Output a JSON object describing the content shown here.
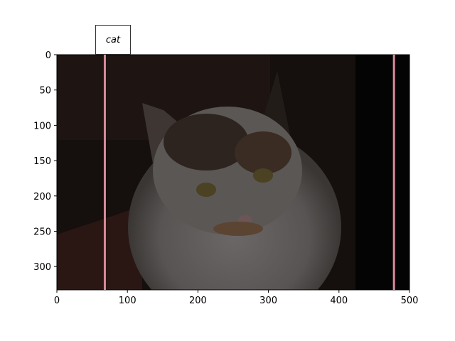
{
  "chart_data": {
    "type": "image",
    "annotation": "cat",
    "xlim": [
      0,
      500
    ],
    "ylim": [
      333,
      0
    ],
    "xticks": [
      0,
      100,
      200,
      300,
      400,
      500
    ],
    "yticks": [
      0,
      50,
      100,
      150,
      200,
      250,
      300
    ],
    "vlines": [
      68,
      478
    ],
    "line_color": "#d98a9a"
  }
}
